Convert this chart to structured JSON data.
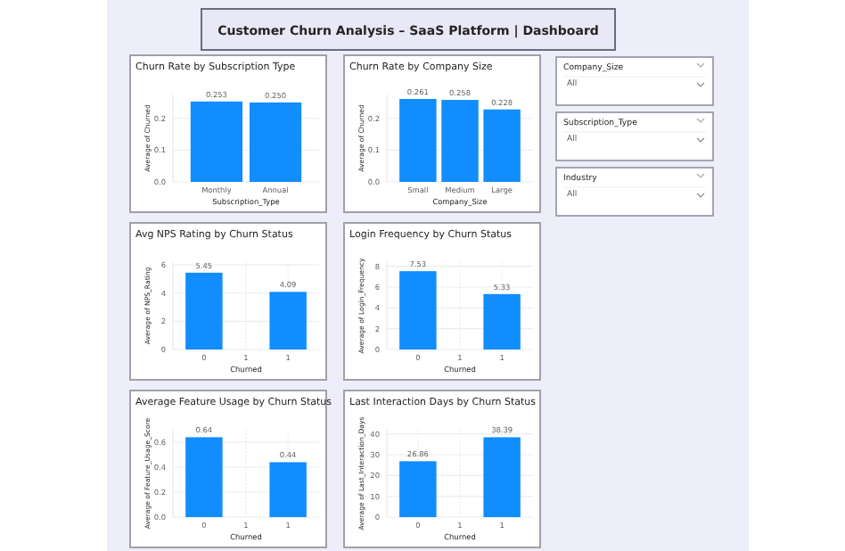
{
  "chart_data": [
    {
      "type": "bar",
      "title": "Churn Rate by Subscription Type",
      "xlabel": "Subscription_Type",
      "ylabel": "Average of Churned",
      "categories": [
        "Monthly",
        "Annual"
      ],
      "values": [
        0.253,
        0.25
      ],
      "value_labels": [
        "0.253",
        "0.250"
      ],
      "color": "#118dff",
      "ylim": [
        0,
        0.275
      ],
      "yticks": [
        {
          "value": 0,
          "label": "0.0"
        },
        {
          "value": 0.1,
          "label": "0.1"
        },
        {
          "value": 0.2,
          "label": "0.2"
        }
      ],
      "grid": "y"
    },
    {
      "type": "bar",
      "title": "Churn Rate by Company Size",
      "xlabel": "Company_Size",
      "ylabel": "Average of Churned",
      "categories": [
        "Small",
        "Medium",
        "Large"
      ],
      "values": [
        0.261,
        0.258,
        0.228
      ],
      "value_labels": [
        "0.261",
        "0.258",
        "0.228"
      ],
      "color": "#118dff",
      "ylim": [
        0,
        0.275
      ],
      "yticks": [
        {
          "value": 0,
          "label": "0.0"
        },
        {
          "value": 0.1,
          "label": "0.1"
        },
        {
          "value": 0.2,
          "label": "0.2"
        }
      ],
      "grid": "y"
    },
    {
      "type": "bar",
      "title": "Avg NPS Rating by Churn Status",
      "xlabel": "Churned",
      "ylabel": "Average of NPS_Rating",
      "categories": [
        "0",
        "1",
        "1"
      ],
      "values": [
        5.45,
        null,
        4.09
      ],
      "value_labels": [
        "5.45",
        null,
        "4.09"
      ],
      "color": "#118dff",
      "ylim": [
        0,
        6.2
      ],
      "yticks": [
        0,
        2,
        4,
        6
      ],
      "grid": true
    },
    {
      "type": "bar",
      "title": "Login Frequency by Churn Status",
      "xlabel": "Churned",
      "ylabel": "Average of Login_Frequency",
      "categories": [
        "0",
        "1",
        "1"
      ],
      "values": [
        7.53,
        null,
        5.33
      ],
      "value_labels": [
        "7.53",
        null,
        "5.33"
      ],
      "color": "#118dff",
      "ylim": [
        0,
        8.4
      ],
      "yticks": [
        0,
        2,
        4,
        6,
        8
      ],
      "grid": true
    },
    {
      "type": "bar",
      "title": "Average Feature Usage by Churn Status",
      "xlabel": "Churned",
      "ylabel": "Average of Feature_Usage_Score",
      "categories": [
        "0",
        "1",
        "1"
      ],
      "values": [
        0.64,
        null,
        0.44
      ],
      "value_labels": [
        "0.64",
        null,
        "0.44"
      ],
      "color": "#118dff",
      "ylim": [
        0,
        0.7
      ],
      "yticks": [
        {
          "value": 0,
          "label": "0.0"
        },
        {
          "value": 0.2,
          "label": "0.2"
        },
        {
          "value": 0.4,
          "label": "0.4"
        },
        {
          "value": 0.6,
          "label": "0.6"
        }
      ],
      "grid": true
    },
    {
      "type": "bar",
      "title": "Last Interaction Days by Churn Status",
      "xlabel": "Churned",
      "ylabel": "Average of Last_Interaction_Days",
      "categories": [
        "0",
        "1",
        "1"
      ],
      "values": [
        26.86,
        null,
        38.39
      ],
      "value_labels": [
        "26.86",
        null,
        "38.39"
      ],
      "color": "#118dff",
      "ylim": [
        0,
        42
      ],
      "yticks": [
        0,
        10,
        20,
        30,
        40
      ],
      "grid": true
    },
    {
      "type": "other",
      "title": "Customer Churn Analysis – SaaS Platform | Dashboard",
      "annotations": [
        "Company_Size",
        "All",
        "Subscription_Type",
        "All",
        "Industry",
        "All"
      ]
    }
  ]
}
